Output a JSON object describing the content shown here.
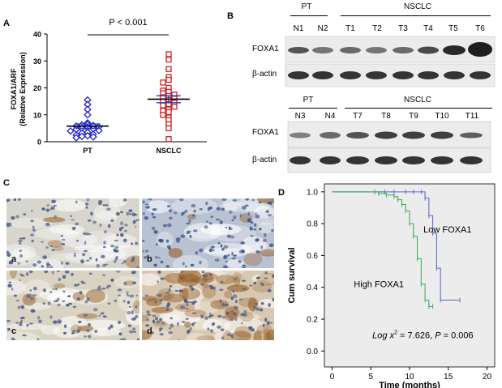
{
  "panelA": {
    "letter": "A",
    "ylabel_line1": "FOXA1/ARF",
    "ylabel_line2": "(Relative  Expression)",
    "pvalue": "P < 0.001",
    "yticks": [
      "0",
      "10",
      "20",
      "30",
      "40"
    ],
    "categories": [
      "PT",
      "NSCLC"
    ]
  },
  "panelB": {
    "letter": "B",
    "top": {
      "group_pt": "PT",
      "group_nsclc": "NSCLC",
      "lanes": [
        "N1",
        "N2",
        "T1",
        "T2",
        "T3",
        "T4",
        "T5",
        "T6"
      ],
      "row1": "FOXA1",
      "row2": "β-actin"
    },
    "bottom": {
      "group_pt": "PT",
      "group_nsclc": "NSCLC",
      "lanes": [
        "N3",
        "N4",
        "T7",
        "T8",
        "T9",
        "T10",
        "T11"
      ],
      "row1": "FOXA1",
      "row2": "β-actin"
    }
  },
  "panelC": {
    "letter": "C",
    "labels": [
      "a",
      "b",
      "c",
      "d"
    ]
  },
  "panelD": {
    "letter": "D",
    "ylabel": "Cum survival",
    "xlabel": "Time (months)",
    "low_label": "Low FOXA1",
    "high_label": "High FOXA1",
    "stat_prefix": "Log",
    "stat_x": "x",
    "stat_sup": "2",
    "stat_mid": " = 7.626, ",
    "stat_p": "P",
    "stat_end": " = 0.006",
    "yticks": [
      "0.0",
      "0.2",
      "0.4",
      "0.6",
      "0.8",
      "1.0"
    ],
    "xticks": [
      "0",
      "5",
      "10",
      "15",
      "20"
    ]
  },
  "chart_data": [
    {
      "type": "scatter",
      "title": "",
      "xlabel": "",
      "ylabel": "FOXA1/ARF (Relative  Expression)",
      "categories": [
        "PT",
        "NSCLC"
      ],
      "ylim": [
        0,
        40
      ],
      "series": [
        {
          "name": "PT",
          "color": "#2222cc",
          "marker": "diamond",
          "values": [
            15.5,
            13.8,
            12.0,
            10.0,
            7.0,
            6.5,
            6.2,
            6.0,
            5.8,
            5.5,
            5.2,
            5.0,
            4.8,
            4.6,
            4.2,
            4.0,
            3.5,
            3.2,
            2.8,
            2.5,
            2.2,
            2.0,
            1.8,
            1.5
          ],
          "mean": 5.8,
          "sem": 0.8
        },
        {
          "name": "NSCLC",
          "color": "#cc2222",
          "marker": "square",
          "values": [
            32.5,
            30.5,
            27.0,
            24.0,
            23.0,
            22.0,
            20.0,
            19.0,
            18.5,
            18.0,
            17.5,
            17.0,
            16.5,
            16.0,
            15.5,
            15.0,
            14.5,
            14.0,
            13.5,
            13.0,
            12.0,
            11.5,
            11.0,
            10.0,
            9.0,
            8.0,
            6.5,
            5.0,
            1.0
          ],
          "mean": 15.8,
          "sem": 1.3
        }
      ]
    },
    {
      "type": "line",
      "title": "",
      "xlabel": "Time (months)",
      "ylabel": "Cum survival",
      "xlim": [
        -1,
        21
      ],
      "ylim": [
        -0.1,
        1.05
      ],
      "series": [
        {
          "name": "Low FOXA1",
          "color": "#5566cc",
          "x": [
            0,
            5.5,
            6.8,
            8.0,
            9.5,
            10.5,
            11.5,
            12.0,
            12.5,
            13.0,
            13.5,
            14.0,
            16.5
          ],
          "y": [
            1.0,
            1.0,
            1.0,
            1.0,
            1.0,
            1.0,
            1.0,
            0.96,
            0.85,
            0.74,
            0.52,
            0.32,
            0.32
          ]
        },
        {
          "name": "High FOXA1",
          "color": "#33aa55",
          "x": [
            0,
            5.5,
            6.0,
            7.0,
            8.0,
            8.5,
            9.0,
            9.5,
            10.0,
            10.5,
            11.0,
            11.5,
            12.0,
            12.5,
            13.0
          ],
          "y": [
            1.0,
            1.0,
            0.99,
            0.98,
            0.97,
            0.95,
            0.92,
            0.88,
            0.8,
            0.72,
            0.58,
            0.42,
            0.32,
            0.28,
            0.28
          ]
        }
      ]
    }
  ]
}
